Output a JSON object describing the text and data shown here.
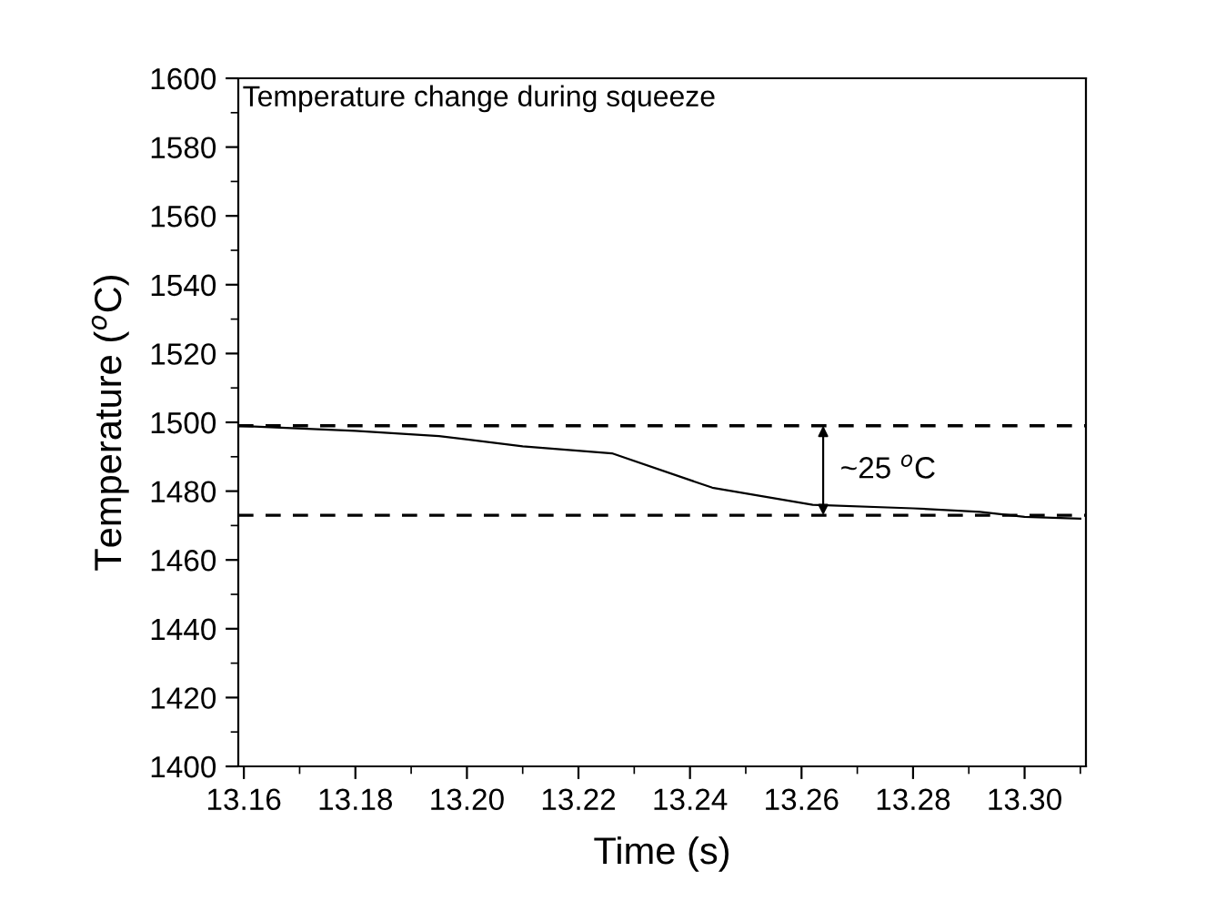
{
  "chart_data": {
    "type": "line",
    "title": "Temperature change during squeeze",
    "xlabel": "Time (s)",
    "ylabel": "Temperature ($^{o}$C)",
    "x": [
      13.159,
      13.18,
      13.195,
      13.21,
      13.226,
      13.244,
      13.262,
      13.28,
      13.292,
      13.3,
      13.31
    ],
    "series": [
      {
        "color": "#000000",
        "values": [
          1499,
          1497.5,
          1496,
          1493,
          1491,
          1481,
          1476,
          1475,
          1474,
          1472.5,
          1472
        ]
      }
    ],
    "xlim": [
      13.159,
      13.311
    ],
    "xticks": [
      {
        "value": 13.16,
        "label": "13.16"
      },
      {
        "value": 13.18,
        "label": "13.18"
      },
      {
        "value": 13.2,
        "label": "13.20"
      },
      {
        "value": 13.22,
        "label": "13.22"
      },
      {
        "value": 13.24,
        "label": "13.24"
      },
      {
        "value": 13.26,
        "label": "13.26"
      },
      {
        "value": 13.28,
        "label": "13.28"
      },
      {
        "value": 13.3,
        "label": "13.30"
      }
    ],
    "ylim": [
      1400,
      1600
    ],
    "yticks": [
      1400,
      1420,
      1440,
      1460,
      1480,
      1500,
      1520,
      1540,
      1560,
      1580,
      1600
    ],
    "ref_lines": [
      {
        "axis": "y",
        "value": 1499,
        "label": null,
        "color": "#000000",
        "line_style": "dashed"
      },
      {
        "axis": "y",
        "value": 1473,
        "label": null,
        "color": "#000000",
        "line_style": "dashed"
      }
    ],
    "annotations": [
      "~25 $^{o}$C"
    ],
    "grid": false,
    "legend": false,
    "marker": "none",
    "line_style": "solid"
  }
}
